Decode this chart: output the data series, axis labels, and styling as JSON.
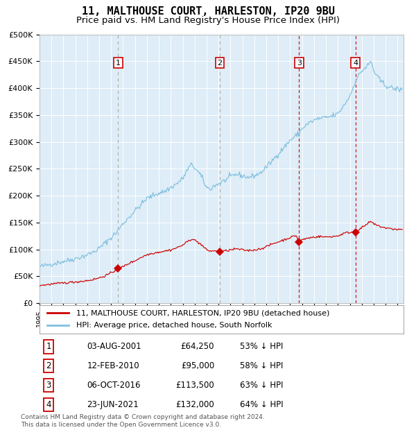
{
  "title": "11, MALTHOUSE COURT, HARLESTON, IP20 9BU",
  "subtitle": "Price paid vs. HM Land Registry's House Price Index (HPI)",
  "ylim": [
    0,
    500000
  ],
  "yticks": [
    0,
    50000,
    100000,
    150000,
    200000,
    250000,
    300000,
    350000,
    400000,
    450000,
    500000
  ],
  "ytick_labels": [
    "£0",
    "£50K",
    "£100K",
    "£150K",
    "£200K",
    "£250K",
    "£300K",
    "£350K",
    "£400K",
    "£450K",
    "£500K"
  ],
  "xlim_start": 1995.0,
  "xlim_end": 2025.5,
  "hpi_color": "#7fbfdf",
  "price_color": "#cc0000",
  "background_color": "#deedf7",
  "sale_dates": [
    2001.585,
    2010.11,
    2016.756,
    2021.475
  ],
  "sale_prices": [
    64250,
    95000,
    113500,
    132000
  ],
  "sale_labels": [
    "1",
    "2",
    "3",
    "4"
  ],
  "legend_label_red": "11, MALTHOUSE COURT, HARLESTON, IP20 9BU (detached house)",
  "legend_label_blue": "HPI: Average price, detached house, South Norfolk",
  "table_rows": [
    [
      "1",
      "03-AUG-2001",
      "£64,250",
      "53% ↓ HPI"
    ],
    [
      "2",
      "12-FEB-2010",
      "£95,000",
      "58% ↓ HPI"
    ],
    [
      "3",
      "06-OCT-2016",
      "£113,500",
      "63% ↓ HPI"
    ],
    [
      "4",
      "23-JUN-2021",
      "£132,000",
      "64% ↓ HPI"
    ]
  ],
  "footer": "Contains HM Land Registry data © Crown copyright and database right 2024.\nThis data is licensed under the Open Government Licence v3.0.",
  "title_fontsize": 11,
  "subtitle_fontsize": 9.5
}
